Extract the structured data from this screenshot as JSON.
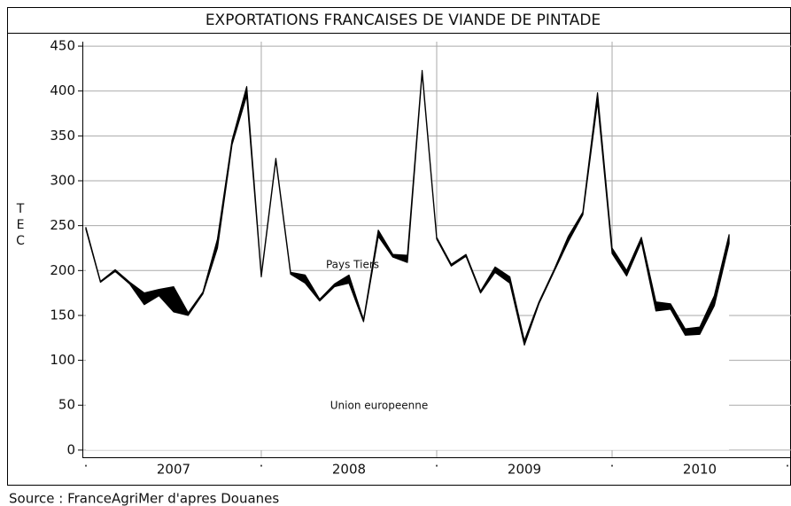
{
  "chart_data": {
    "type": "stacked_area",
    "title": "EXPORTATIONS FRANCAISES DE VIANDE DE PINTADE",
    "y_label": "TEC",
    "source": "Source : FranceAgriMer d'apres Douanes",
    "x": [
      2007,
      2007.083,
      2007.167,
      2007.25,
      2007.333,
      2007.417,
      2007.5,
      2007.583,
      2007.667,
      2007.75,
      2007.833,
      2007.917,
      2008,
      2008.083,
      2008.167,
      2008.25,
      2008.333,
      2008.417,
      2008.5,
      2008.583,
      2008.667,
      2008.75,
      2008.833,
      2008.917,
      2009,
      2009.083,
      2009.167,
      2009.25,
      2009.333,
      2009.417,
      2009.5,
      2009.583,
      2009.667,
      2009.75,
      2009.833,
      2009.917,
      2010,
      2010.083,
      2010.167,
      2010.25,
      2010.333,
      2010.417,
      2010.5,
      2010.583,
      2010.667
    ],
    "series": [
      {
        "name": "Union europeenne",
        "color": "#ffffff",
        "values": [
          246,
          187,
          199,
          185,
          162,
          172,
          154,
          150,
          174,
          225,
          340,
          395,
          193,
          323,
          196,
          186,
          166,
          182,
          186,
          143,
          238,
          215,
          209,
          420,
          235,
          205,
          216,
          175,
          198,
          186,
          117,
          163,
          198,
          232,
          262,
          388,
          219,
          194,
          232,
          155,
          157,
          128,
          129,
          161,
          230
        ]
      },
      {
        "name": "Pays Tiers",
        "color": "#000000",
        "values": [
          2,
          1,
          2,
          2,
          13,
          7,
          28,
          3,
          2,
          10,
          5,
          10,
          2,
          2,
          2,
          9,
          2,
          3,
          9,
          2,
          7,
          3,
          8,
          3,
          2,
          2,
          2,
          2,
          6,
          7,
          5,
          2,
          2,
          6,
          3,
          10,
          6,
          6,
          5,
          10,
          6,
          7,
          8,
          11,
          10
        ]
      }
    ],
    "xlim": [
      2006.98,
      2011.02
    ],
    "xticks": [
      {
        "value": 2007,
        "label": "."
      },
      {
        "value": 2008,
        "label": "."
      },
      {
        "value": 2009,
        "label": "."
      },
      {
        "value": 2010,
        "label": "."
      },
      {
        "value": 2011,
        "label": "."
      }
    ],
    "year_labels": [
      {
        "value": 2007.5,
        "label": "2007"
      },
      {
        "value": 2008.5,
        "label": "2008"
      },
      {
        "value": 2009.5,
        "label": "2009"
      },
      {
        "value": 2010.5,
        "label": "2010"
      }
    ],
    "ylim": [
      -8,
      455
    ],
    "yticks": [
      0,
      50,
      100,
      150,
      200,
      250,
      300,
      350,
      400,
      450
    ],
    "grid": true
  }
}
